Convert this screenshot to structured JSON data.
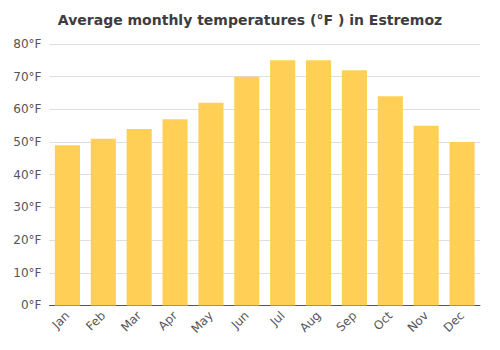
{
  "chart_data": {
    "type": "bar",
    "title": "Average monthly temperatures (°F ) in Estremoz",
    "categories": [
      "Jan",
      "Feb",
      "Mar",
      "Apr",
      "May",
      "Jun",
      "Jul",
      "Aug",
      "Sep",
      "Oct",
      "Nov",
      "Dec"
    ],
    "values": [
      49,
      51,
      54,
      57,
      62,
      70,
      75,
      75,
      72,
      64,
      55,
      50
    ],
    "color": "#FFD055",
    "ylim": [
      0,
      80
    ],
    "yticks": [
      {
        "value": 0,
        "label": "0°F"
      },
      {
        "value": 10,
        "label": "10°F"
      },
      {
        "value": 20,
        "label": "20°F"
      },
      {
        "value": 30,
        "label": "30°F"
      },
      {
        "value": 40,
        "label": "40°F"
      },
      {
        "value": 50,
        "label": "50°F"
      },
      {
        "value": 60,
        "label": "60°F"
      },
      {
        "value": 70,
        "label": "70°F"
      },
      {
        "value": 80,
        "label": "80°F"
      }
    ],
    "grid": true
  }
}
